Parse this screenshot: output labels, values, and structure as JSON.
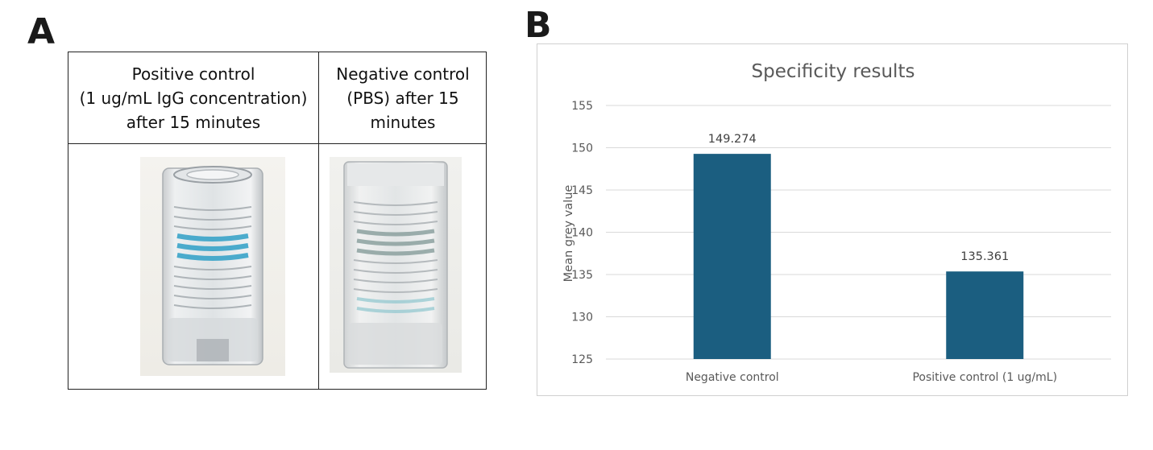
{
  "panel_labels": {
    "a": "A",
    "b": "B"
  },
  "table": {
    "headers": [
      "Positive control\n(1 ug/mL IgG concentration)\nafter 15 minutes",
      "Negative control\n(PBS) after 15\nminutes"
    ]
  },
  "chart_data": {
    "type": "bar",
    "title": "Specificity results",
    "xlabel": "",
    "ylabel": "Mean grey value",
    "categories": [
      "Negative control",
      "Positive control (1 ug/mL)"
    ],
    "values": [
      149.274,
      135.361
    ],
    "data_labels": [
      "149.274",
      "135.361"
    ],
    "ylim": [
      125,
      155
    ],
    "yticks": [
      125,
      130,
      135,
      140,
      145,
      150,
      155
    ],
    "grid": true,
    "legend": "none",
    "bar_color": "#1b5e80",
    "grid_color": "#d9d9d9"
  }
}
